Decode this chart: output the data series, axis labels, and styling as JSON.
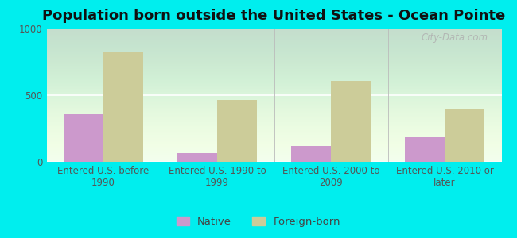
{
  "title": "Population born outside the United States - Ocean Pointe",
  "categories": [
    "Entered U.S. before\n1990",
    "Entered U.S. 1990 to\n1999",
    "Entered U.S. 2000 to\n2009",
    "Entered U.S. 2010 or\nlater"
  ],
  "native_values": [
    360,
    65,
    120,
    185
  ],
  "foreign_values": [
    820,
    465,
    610,
    400
  ],
  "native_color": "#cc99cc",
  "foreign_color": "#cccc99",
  "background_color": "#00eeee",
  "ylim": [
    0,
    1000
  ],
  "yticks": [
    0,
    500,
    1000
  ],
  "bar_width": 0.35,
  "legend_labels": [
    "Native",
    "Foreign-born"
  ],
  "watermark": "City-Data.com",
  "title_fontsize": 13,
  "tick_fontsize": 8.5,
  "legend_fontsize": 9.5
}
